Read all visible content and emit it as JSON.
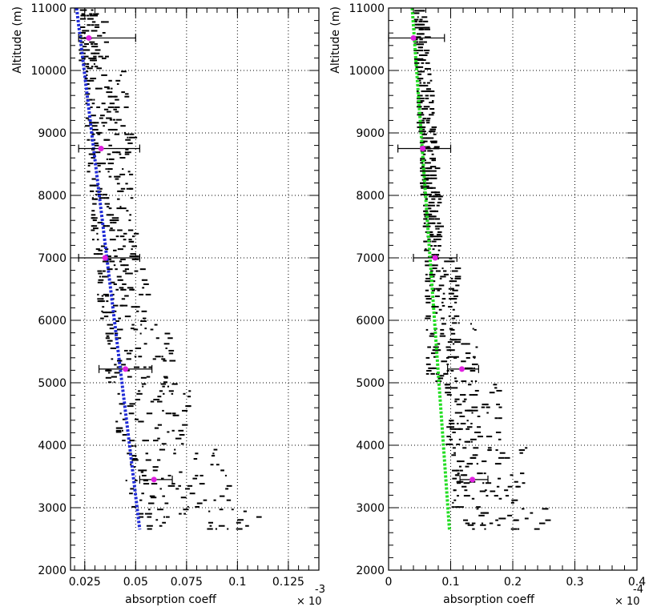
{
  "chart_data": [
    {
      "type": "scatter",
      "title": "",
      "ylabel": "Altitude (m)",
      "xlabel": "absorption coeff",
      "x_multiplier": "× 10",
      "x_exponent": "-3",
      "xlim": [
        0.018,
        0.14
      ],
      "ylim": [
        2000,
        11000
      ],
      "xticks": [
        0.025,
        0.05,
        0.075,
        0.1,
        0.125
      ],
      "xtick_labels": [
        "0.025",
        "0.05",
        "0.075",
        "0.1",
        "0.125"
      ],
      "yticks": [
        2000,
        3000,
        4000,
        5000,
        6000,
        7000,
        8000,
        9000,
        10000,
        11000
      ],
      "ytick_labels": [
        "2000",
        "3000",
        "4000",
        "5000",
        "6000",
        "7000",
        "8000",
        "9000",
        "10000",
        "11000"
      ],
      "grid": true,
      "fit_line": {
        "color": "#1f2bd6",
        "x": [
          0.021,
          0.052
        ],
        "y": [
          11000,
          2650
        ]
      },
      "measurement_cloud": {
        "color": "#000000",
        "bands": [
          {
            "y": [
              10800,
              11000
            ],
            "x": [
              0.022,
              0.03
            ]
          },
          {
            "y": [
              10000,
              10800
            ],
            "x": [
              0.022,
              0.035
            ]
          },
          {
            "y": [
              9000,
              10000
            ],
            "x": [
              0.025,
              0.045
            ]
          },
          {
            "y": [
              8000,
              9000
            ],
            "x": [
              0.026,
              0.048
            ]
          },
          {
            "y": [
              7000,
              8000
            ],
            "x": [
              0.028,
              0.05
            ]
          },
          {
            "y": [
              6000,
              7000
            ],
            "x": [
              0.031,
              0.055
            ]
          },
          {
            "y": [
              5000,
              6000
            ],
            "x": [
              0.035,
              0.068
            ]
          },
          {
            "y": [
              4000,
              5000
            ],
            "x": [
              0.04,
              0.076
            ]
          },
          {
            "y": [
              3000,
              4000
            ],
            "x": [
              0.045,
              0.095
            ]
          },
          {
            "y": [
              2650,
              3000
            ],
            "x": [
              0.05,
              0.115
            ]
          }
        ]
      },
      "series": [
        {
          "color": "#e020e0",
          "points": [
            {
              "x": 0.027,
              "y": 10520,
              "xerr_low": 0.022,
              "xerr_high": 0.05
            },
            {
              "x": 0.033,
              "y": 8750,
              "xerr_low": 0.022,
              "xerr_high": 0.052
            },
            {
              "x": 0.035,
              "y": 7000,
              "xerr_low": 0.022,
              "xerr_high": 0.052
            },
            {
              "x": 0.045,
              "y": 5220,
              "xerr_low": 0.032,
              "xerr_high": 0.058
            },
            {
              "x": 0.059,
              "y": 3450,
              "xerr_low": 0.052,
              "xerr_high": 0.068
            }
          ]
        }
      ]
    },
    {
      "type": "scatter",
      "title": "",
      "ylabel": "Altitude (m)",
      "xlabel": "absorption coeff",
      "x_multiplier": "× 10",
      "x_exponent": "-4",
      "xlim": [
        0,
        0.4
      ],
      "ylim": [
        2000,
        11000
      ],
      "xticks": [
        0,
        0.1,
        0.2,
        0.3,
        0.4
      ],
      "xtick_labels": [
        "0",
        "0.1",
        "0.2",
        "0.3",
        "0.4"
      ],
      "yticks": [
        2000,
        3000,
        4000,
        5000,
        6000,
        7000,
        8000,
        9000,
        10000,
        11000
      ],
      "ytick_labels": [
        "2000",
        "3000",
        "4000",
        "5000",
        "6000",
        "7000",
        "8000",
        "9000",
        "10000",
        "11000"
      ],
      "grid": true,
      "fit_line": {
        "color": "#22dd22",
        "x": [
          0.038,
          0.098
        ],
        "y": [
          11000,
          2650
        ]
      },
      "measurement_cloud": {
        "color": "#000000",
        "bands": [
          {
            "y": [
              10800,
              11000
            ],
            "x": [
              0.04,
              0.055
            ]
          },
          {
            "y": [
              10000,
              10800
            ],
            "x": [
              0.04,
              0.06
            ]
          },
          {
            "y": [
              9000,
              10000
            ],
            "x": [
              0.045,
              0.07
            ]
          },
          {
            "y": [
              8000,
              9000
            ],
            "x": [
              0.05,
              0.075
            ]
          },
          {
            "y": [
              7000,
              8000
            ],
            "x": [
              0.055,
              0.08
            ]
          },
          {
            "y": [
              6000,
              7000
            ],
            "x": [
              0.058,
              0.11
            ]
          },
          {
            "y": [
              5000,
              6000
            ],
            "x": [
              0.06,
              0.14
            ]
          },
          {
            "y": [
              4000,
              5000
            ],
            "x": [
              0.09,
              0.18
            ]
          },
          {
            "y": [
              3000,
              4000
            ],
            "x": [
              0.1,
              0.22
            ]
          },
          {
            "y": [
              2650,
              3000
            ],
            "x": [
              0.12,
              0.26
            ]
          }
        ]
      },
      "series": [
        {
          "color": "#e020e0",
          "points": [
            {
              "x": 0.04,
              "y": 10520,
              "xerr_low": 0.0,
              "xerr_high": 0.09
            },
            {
              "x": 0.055,
              "y": 8750,
              "xerr_low": 0.015,
              "xerr_high": 0.1
            },
            {
              "x": 0.075,
              "y": 7000,
              "xerr_low": 0.04,
              "xerr_high": 0.11
            },
            {
              "x": 0.118,
              "y": 5220,
              "xerr_low": 0.095,
              "xerr_high": 0.145
            },
            {
              "x": 0.135,
              "y": 3450,
              "xerr_low": 0.115,
              "xerr_high": 0.16
            }
          ]
        }
      ]
    }
  ]
}
